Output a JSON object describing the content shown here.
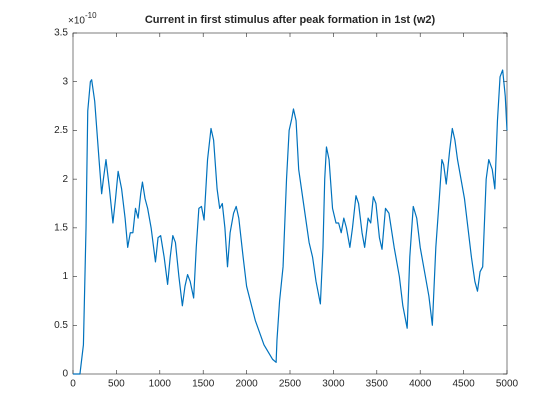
{
  "chart_data": {
    "type": "line",
    "title": "Current in first stimulus after peak formation in 1st (w2)",
    "y_exponent": {
      "base": "×10",
      "power": "-10"
    },
    "color": "#0072bd",
    "x": [
      0,
      80,
      120,
      150,
      170,
      200,
      215,
      250,
      300,
      330,
      350,
      380,
      420,
      460,
      490,
      520,
      560,
      600,
      630,
      660,
      690,
      720,
      750,
      780,
      800,
      830,
      860,
      900,
      950,
      980,
      1010,
      1050,
      1090,
      1120,
      1150,
      1180,
      1220,
      1260,
      1290,
      1320,
      1350,
      1390,
      1420,
      1450,
      1480,
      1510,
      1550,
      1590,
      1620,
      1660,
      1690,
      1720,
      1750,
      1780,
      1810,
      1850,
      1880,
      1910,
      1960,
      2000,
      2100,
      2200,
      2300,
      2340,
      2350,
      2380,
      2420,
      2460,
      2490,
      2520,
      2540,
      2570,
      2600,
      2640,
      2680,
      2720,
      2760,
      2800,
      2850,
      2880,
      2900,
      2920,
      2950,
      2990,
      3030,
      3060,
      3090,
      3120,
      3150,
      3190,
      3220,
      3260,
      3290,
      3330,
      3360,
      3400,
      3430,
      3460,
      3490,
      3530,
      3560,
      3600,
      3640,
      3700,
      3760,
      3800,
      3850,
      3880,
      3920,
      3960,
      4000,
      4050,
      4100,
      4140,
      4180,
      4220,
      4250,
      4270,
      4300,
      4340,
      4370,
      4400,
      4430,
      4470,
      4510,
      4550,
      4590,
      4630,
      4660,
      4690,
      4720,
      4760,
      4790,
      4830,
      4860,
      4890,
      4920,
      4950,
      4980,
      5000
    ],
    "values": [
      0,
      0,
      0.3,
      1.5,
      2.7,
      3.0,
      3.02,
      2.8,
      2.2,
      1.85,
      2.0,
      2.2,
      1.9,
      1.55,
      1.8,
      2.08,
      1.9,
      1.6,
      1.3,
      1.45,
      1.45,
      1.7,
      1.6,
      1.85,
      1.97,
      1.8,
      1.7,
      1.5,
      1.15,
      1.4,
      1.42,
      1.2,
      0.92,
      1.2,
      1.42,
      1.35,
      1.0,
      0.7,
      0.9,
      1.02,
      0.95,
      0.78,
      1.3,
      1.7,
      1.72,
      1.58,
      2.2,
      2.52,
      2.4,
      1.9,
      1.7,
      1.75,
      1.5,
      1.1,
      1.45,
      1.65,
      1.72,
      1.6,
      1.2,
      0.9,
      0.55,
      0.3,
      0.15,
      0.12,
      0.35,
      0.75,
      1.1,
      2.0,
      2.5,
      2.62,
      2.72,
      2.6,
      2.1,
      1.85,
      1.6,
      1.35,
      1.2,
      0.95,
      0.72,
      1.3,
      2.0,
      2.33,
      2.2,
      1.7,
      1.55,
      1.55,
      1.45,
      1.6,
      1.5,
      1.3,
      1.5,
      1.83,
      1.75,
      1.45,
      1.3,
      1.6,
      1.55,
      1.82,
      1.75,
      1.4,
      1.28,
      1.7,
      1.65,
      1.3,
      1.0,
      0.7,
      0.47,
      1.2,
      1.72,
      1.6,
      1.3,
      1.05,
      0.8,
      0.5,
      1.3,
      1.8,
      2.2,
      2.15,
      1.95,
      2.3,
      2.52,
      2.4,
      2.2,
      2.0,
      1.8,
      1.5,
      1.2,
      0.95,
      0.85,
      1.05,
      1.1,
      2.0,
      2.2,
      2.1,
      1.9,
      2.6,
      3.05,
      3.12,
      2.85,
      2.5
    ],
    "xlim": [
      0,
      5000
    ],
    "xticks": [
      0,
      500,
      1000,
      1500,
      2000,
      2500,
      3000,
      3500,
      4000,
      4500,
      5000
    ],
    "ylim": [
      0,
      3.5
    ],
    "yticks": [
      0,
      0.5,
      1,
      1.5,
      2,
      2.5,
      3,
      3.5
    ]
  }
}
